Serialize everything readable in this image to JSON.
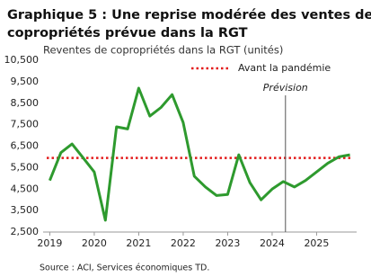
{
  "chart_data": {
    "type": "line",
    "title": [
      "Graphique 5 : Une reprise modérée des ventes de",
      "copropriétés prévue dans la RGT"
    ],
    "subtitle": "Reventes de copropriétés dans la RGT (unités)",
    "source": "Source : ACI, Services économiques TD.",
    "x": [
      2019,
      2019.25,
      2019.5,
      2019.75,
      2020,
      2020.25,
      2020.5,
      2020.75,
      2021,
      2021.25,
      2021.5,
      2021.75,
      2022,
      2022.25,
      2022.5,
      2022.75,
      2023,
      2023.25,
      2023.5,
      2023.75,
      2024,
      2024.25,
      2024.5,
      2024.75,
      2025,
      2025.25,
      2025.5,
      2025.75
    ],
    "values": [
      4900,
      6200,
      6600,
      5950,
      5300,
      3050,
      7400,
      7300,
      9200,
      7900,
      8300,
      8900,
      7600,
      5100,
      4600,
      4200,
      4250,
      6100,
      4800,
      4000,
      4500,
      4850,
      4600,
      4900,
      5300,
      5700,
      6000,
      6100
    ],
    "color": "#2e9a2e",
    "xlim": [
      2018.85,
      2025.9
    ],
    "xticks": [
      2019,
      2020,
      2021,
      2022,
      2023,
      2024,
      2025
    ],
    "ylim": [
      2500,
      10500
    ],
    "yticks": [
      {
        "value": 2500,
        "label": "2,500"
      },
      {
        "value": 3500,
        "label": "3,500"
      },
      {
        "value": 4500,
        "label": "4,500"
      },
      {
        "value": 5500,
        "label": "5,500"
      },
      {
        "value": 6500,
        "label": "6,500"
      },
      {
        "value": 7500,
        "label": "7,500"
      },
      {
        "value": 8500,
        "label": "8,500"
      },
      {
        "value": 9500,
        "label": "9,500"
      },
      {
        "value": 10500,
        "label": "10,500"
      }
    ],
    "reference": {
      "value": 5950,
      "label": "Avant la pandémie",
      "color": "#e31b1b"
    },
    "forecast": {
      "x": 2024.3,
      "label": "Prévision"
    },
    "grid": false
  }
}
